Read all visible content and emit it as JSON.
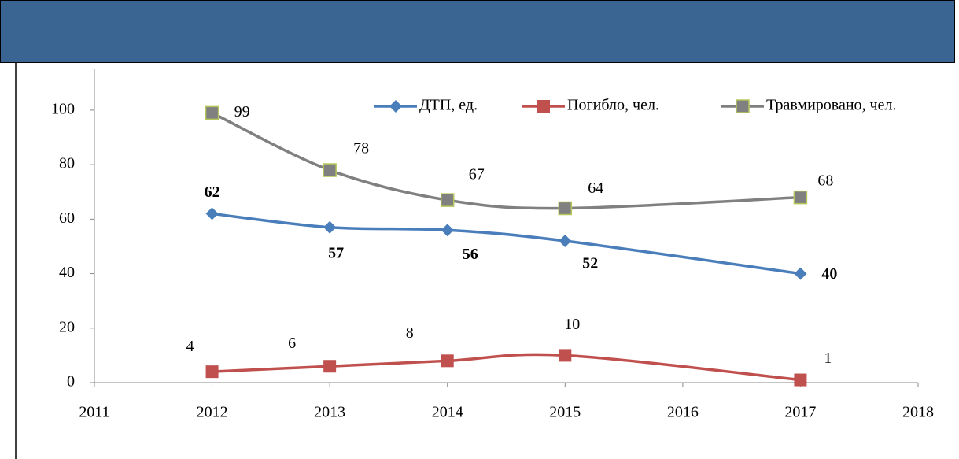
{
  "chart_data": {
    "type": "line",
    "x": [
      2012,
      2013,
      2014,
      2015,
      2017
    ],
    "series": [
      {
        "name": "ДТП, ед.",
        "color": "#4a7ebb",
        "marker": "diamond",
        "values": [
          62,
          57,
          56,
          52,
          40
        ]
      },
      {
        "name": "Погибло, чел.",
        "color": "#c0504d",
        "marker": "square",
        "values": [
          4,
          6,
          8,
          10,
          1
        ]
      },
      {
        "name": "Травмировано, чел.",
        "color": "#808080",
        "marker": "square",
        "values": [
          99,
          78,
          67,
          64,
          68
        ]
      }
    ],
    "xlim": [
      2011,
      2018
    ],
    "xticks": [
      2011,
      2012,
      2013,
      2014,
      2015,
      2016,
      2017,
      2018
    ],
    "ylim": [
      0,
      115
    ],
    "yticks": [
      0,
      20,
      40,
      60,
      80,
      100
    ],
    "legend": "top-right"
  }
}
